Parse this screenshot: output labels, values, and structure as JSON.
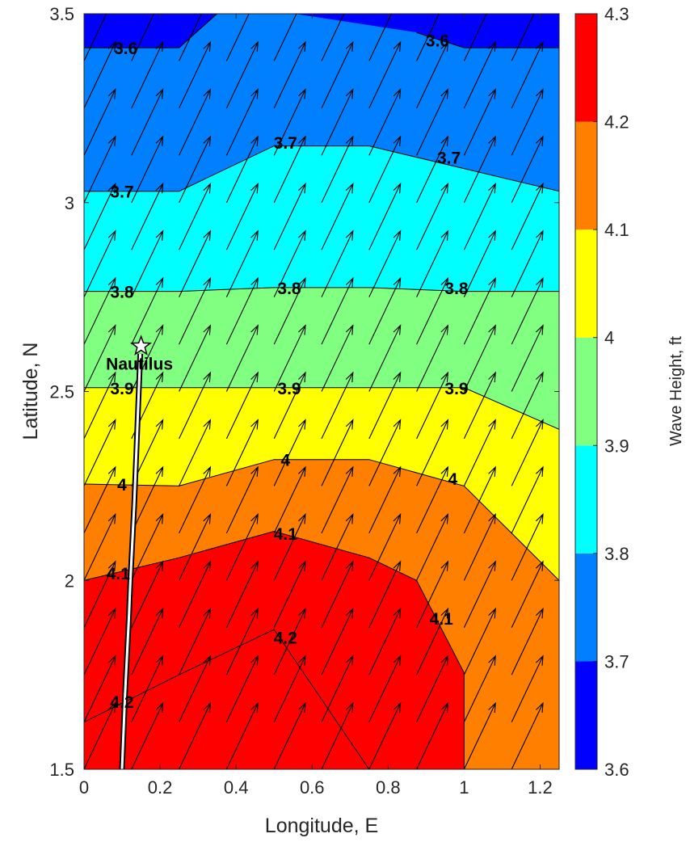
{
  "chart_data": {
    "type": "contour",
    "xlabel": "Longitude, E",
    "ylabel": "Latitude, N",
    "xlim": [
      0,
      1.25
    ],
    "ylim": [
      1.5,
      3.5
    ],
    "xticks": [
      "0",
      "0.2",
      "0.4",
      "0.6",
      "0.8",
      "1",
      "1.2"
    ],
    "yticks": [
      "1.5",
      "2",
      "2.5",
      "3",
      "3.5"
    ],
    "colorbar": {
      "label": "Wave Height, ft",
      "ticks": [
        "3.6",
        "3.7",
        "3.8",
        "3.9",
        "4",
        "4.1",
        "4.2",
        "4.3"
      ],
      "levels": [
        {
          "from": 3.6,
          "to": 3.7,
          "color": "#0000ff"
        },
        {
          "from": 3.7,
          "to": 3.8,
          "color": "#0080ff"
        },
        {
          "from": 3.8,
          "to": 3.9,
          "color": "#00ffff"
        },
        {
          "from": 3.9,
          "to": 4.0,
          "color": "#80ff80"
        },
        {
          "from": 4.0,
          "to": 4.1,
          "color": "#ffff00"
        },
        {
          "from": 4.1,
          "to": 4.2,
          "color": "#ff8000"
        },
        {
          "from": 4.2,
          "to": 4.3,
          "color": "#ff0000"
        }
      ]
    },
    "contours": [
      {
        "level": "3.6",
        "fill": "#0000ff",
        "points": [
          [
            0,
            3.5
          ],
          [
            1.25,
            3.5
          ],
          [
            1.25,
            3.41
          ],
          [
            1.0,
            3.41
          ],
          [
            0.875,
            3.45
          ],
          [
            0.55,
            3.5
          ],
          [
            0.35,
            3.5
          ],
          [
            0.25,
            3.41
          ],
          [
            0,
            3.41
          ]
        ]
      },
      {
        "level": "3.7",
        "fill": "#0080ff",
        "points": [
          [
            0,
            3.41
          ],
          [
            0.25,
            3.41
          ],
          [
            0.35,
            3.5
          ],
          [
            0.55,
            3.5
          ],
          [
            0.875,
            3.45
          ],
          [
            1.0,
            3.41
          ],
          [
            1.25,
            3.41
          ],
          [
            1.25,
            3.03
          ],
          [
            0.75,
            3.15
          ],
          [
            0.5,
            3.15
          ],
          [
            0.25,
            3.03
          ],
          [
            0,
            3.03
          ]
        ]
      },
      {
        "level": "3.8",
        "fill": "#00ffff",
        "points": [
          [
            0,
            3.03
          ],
          [
            0.25,
            3.03
          ],
          [
            0.5,
            3.15
          ],
          [
            0.75,
            3.15
          ],
          [
            1.25,
            3.03
          ],
          [
            1.25,
            2.765
          ],
          [
            1.0,
            2.765
          ],
          [
            0.75,
            2.775
          ],
          [
            0.5,
            2.775
          ],
          [
            0.25,
            2.765
          ],
          [
            0,
            2.765
          ]
        ]
      },
      {
        "level": "3.9",
        "fill": "#80ff80",
        "points": [
          [
            0,
            2.765
          ],
          [
            0.25,
            2.765
          ],
          [
            0.5,
            2.775
          ],
          [
            0.75,
            2.775
          ],
          [
            1.0,
            2.765
          ],
          [
            1.25,
            2.765
          ],
          [
            1.25,
            2.4
          ],
          [
            1.0,
            2.51
          ],
          [
            0.75,
            2.51
          ],
          [
            0.5,
            2.51
          ],
          [
            0.25,
            2.51
          ],
          [
            0,
            2.51
          ]
        ]
      },
      {
        "level": "4",
        "fill": "#ffff00",
        "points": [
          [
            0,
            2.51
          ],
          [
            0.25,
            2.51
          ],
          [
            0.5,
            2.51
          ],
          [
            0.75,
            2.51
          ],
          [
            1.0,
            2.51
          ],
          [
            1.25,
            2.4
          ],
          [
            1.25,
            2.0
          ],
          [
            1.0,
            2.25
          ],
          [
            0.75,
            2.32
          ],
          [
            0.5,
            2.32
          ],
          [
            0.25,
            2.25
          ],
          [
            0,
            2.255
          ]
        ]
      },
      {
        "level": "4.1",
        "fill": "#ff8000",
        "points": [
          [
            0,
            2.255
          ],
          [
            0.25,
            2.25
          ],
          [
            0.5,
            2.32
          ],
          [
            0.75,
            2.32
          ],
          [
            1.0,
            2.25
          ],
          [
            1.25,
            2.0
          ],
          [
            1.25,
            1.5
          ],
          [
            1.0,
            1.5
          ],
          [
            1.0,
            1.755
          ],
          [
            0.875,
            2.0
          ],
          [
            0.75,
            2.06
          ],
          [
            0.5,
            2.13
          ],
          [
            0.25,
            2.06
          ],
          [
            0,
            2.0
          ]
        ]
      },
      {
        "level": "4.2",
        "fill": "#ff0000",
        "points": [
          [
            0,
            2.0
          ],
          [
            0.25,
            2.06
          ],
          [
            0.5,
            2.13
          ],
          [
            0.75,
            2.06
          ],
          [
            0.875,
            2.0
          ],
          [
            1.0,
            1.755
          ],
          [
            1.0,
            1.5
          ],
          [
            0.75,
            1.5
          ],
          [
            0.5,
            1.87
          ],
          [
            0.25,
            1.75
          ],
          [
            0,
            1.625
          ]
        ]
      },
      {
        "level": "4.3",
        "fill": "#ff0000",
        "points": [
          [
            0,
            1.625
          ],
          [
            0.25,
            1.75
          ],
          [
            0.5,
            1.87
          ],
          [
            0.75,
            1.5
          ],
          [
            0,
            1.5
          ]
        ]
      }
    ],
    "contour_lines": [
      [
        [
          0,
          3.41
        ],
        [
          0.25,
          3.41
        ],
        [
          0.35,
          3.5
        ]
      ],
      [
        [
          0.875,
          3.45
        ],
        [
          1.0,
          3.41
        ],
        [
          1.25,
          3.41
        ]
      ],
      [
        [
          0,
          3.03
        ],
        [
          0.25,
          3.03
        ],
        [
          0.5,
          3.15
        ],
        [
          0.75,
          3.15
        ],
        [
          1.25,
          3.03
        ]
      ],
      [
        [
          0,
          2.765
        ],
        [
          0.25,
          2.765
        ],
        [
          0.5,
          2.775
        ],
        [
          0.75,
          2.775
        ],
        [
          1.0,
          2.765
        ],
        [
          1.25,
          2.765
        ]
      ],
      [
        [
          0,
          2.51
        ],
        [
          0.25,
          2.51
        ],
        [
          0.75,
          2.51
        ],
        [
          1.0,
          2.51
        ],
        [
          1.25,
          2.4
        ]
      ],
      [
        [
          0,
          2.255
        ],
        [
          0.25,
          2.25
        ],
        [
          0.5,
          2.32
        ],
        [
          0.75,
          2.32
        ],
        [
          1.0,
          2.25
        ],
        [
          1.25,
          2.0
        ]
      ],
      [
        [
          0,
          2.0
        ],
        [
          0.25,
          2.06
        ],
        [
          0.5,
          2.13
        ],
        [
          0.75,
          2.06
        ],
        [
          0.875,
          2.0
        ],
        [
          1.0,
          1.755
        ],
        [
          1.0,
          1.5
        ]
      ],
      [
        [
          0,
          1.625
        ],
        [
          0.25,
          1.75
        ],
        [
          0.5,
          1.87
        ],
        [
          0.75,
          1.5
        ]
      ]
    ],
    "contour_labels": [
      {
        "text": "3.6",
        "x": 0.11,
        "y": 3.41
      },
      {
        "text": "3.6",
        "x": 0.93,
        "y": 3.43
      },
      {
        "text": "3.7",
        "x": 0.53,
        "y": 3.16
      },
      {
        "text": "3.7",
        "x": 0.96,
        "y": 3.12
      },
      {
        "text": "3.7",
        "x": 0.1,
        "y": 3.03
      },
      {
        "text": "3.8",
        "x": 0.1,
        "y": 2.765
      },
      {
        "text": "3.8",
        "x": 0.54,
        "y": 2.775
      },
      {
        "text": "3.8",
        "x": 0.98,
        "y": 2.775
      },
      {
        "text": "3.9",
        "x": 0.1,
        "y": 2.51
      },
      {
        "text": "3.9",
        "x": 0.54,
        "y": 2.51
      },
      {
        "text": "3.9",
        "x": 0.98,
        "y": 2.51
      },
      {
        "text": "4",
        "x": 0.1,
        "y": 2.255
      },
      {
        "text": "4",
        "x": 0.53,
        "y": 2.32
      },
      {
        "text": "4",
        "x": 0.97,
        "y": 2.27
      },
      {
        "text": "4.1",
        "x": 0.09,
        "y": 2.02
      },
      {
        "text": "4.1",
        "x": 0.53,
        "y": 2.125
      },
      {
        "text": "4.1",
        "x": 0.94,
        "y": 1.9
      },
      {
        "text": "4.2",
        "x": 0.1,
        "y": 1.68
      },
      {
        "text": "4.2",
        "x": 0.53,
        "y": 1.85
      }
    ],
    "wind_vectors": {
      "x": [
        0,
        0.125,
        0.25,
        0.375,
        0.5,
        0.625,
        0.75,
        0.875,
        1.0,
        1.125
      ],
      "y": [
        1.5,
        1.625,
        1.75,
        1.875,
        2.0,
        2.125,
        2.25,
        2.375,
        2.5,
        2.625,
        2.75,
        2.875,
        3.0,
        3.125,
        3.25,
        3.375
      ],
      "u": 0.0825,
      "v": 0.175
    },
    "ship": {
      "name": "Nautilus",
      "track": [
        [
          0.1,
          1.5
        ],
        [
          0.108,
          1.7
        ],
        [
          0.118,
          1.9
        ],
        [
          0.122,
          2.0
        ],
        [
          0.132,
          2.2
        ],
        [
          0.14,
          2.4
        ],
        [
          0.148,
          2.6
        ]
      ],
      "marker": [
        0.15,
        2.62
      ]
    }
  }
}
